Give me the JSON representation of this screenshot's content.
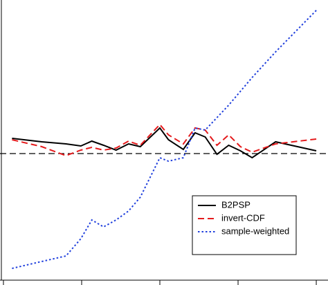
{
  "chart_data": {
    "type": "line",
    "x": [
      0.11,
      0.49,
      0.8,
      0.99,
      1.13,
      1.28,
      1.44,
      1.6,
      1.75,
      2.0,
      2.11,
      2.3,
      2.45,
      2.58,
      2.73,
      2.88,
      3.03,
      3.18,
      3.48,
      4.0
    ],
    "series": [
      {
        "name": "B2PSP",
        "color": "#000000",
        "dash": "solid",
        "values": [
          2.2,
          1.7,
          1.4,
          1.1,
          1.8,
          1.2,
          0.5,
          1.4,
          1.0,
          3.7,
          2.0,
          0.6,
          3.0,
          2.4,
          -0.1,
          1.2,
          0.4,
          -0.6,
          1.7,
          0.4
        ]
      },
      {
        "name": "invert-CDF",
        "color": "#e41a1c",
        "dash": "dashed",
        "values": [
          2.0,
          1.0,
          -0.3,
          0.5,
          0.9,
          0.5,
          0.8,
          1.8,
          1.2,
          4.2,
          2.7,
          1.4,
          3.7,
          3.4,
          1.2,
          2.7,
          1.0,
          0.2,
          1.4,
          2.1
        ]
      },
      {
        "name": "sample-weighted",
        "color": "#1f3fdd",
        "dash": "dotted",
        "values": [
          -16.6,
          -15.6,
          -14.8,
          -12.3,
          -9.6,
          -10.6,
          -9.6,
          -8.3,
          -6.3,
          -0.6,
          -1.1,
          -0.6,
          3.7,
          3.4,
          5.2,
          7.0,
          9.0,
          11.0,
          14.7,
          20.7
        ]
      }
    ],
    "reference_line": 0,
    "xlim": [
      -0.044,
      4.15
    ],
    "ylim": [
      -18.3,
      22.2
    ],
    "xticks": [
      0,
      1,
      2,
      3,
      4
    ],
    "legend": "lower right"
  }
}
